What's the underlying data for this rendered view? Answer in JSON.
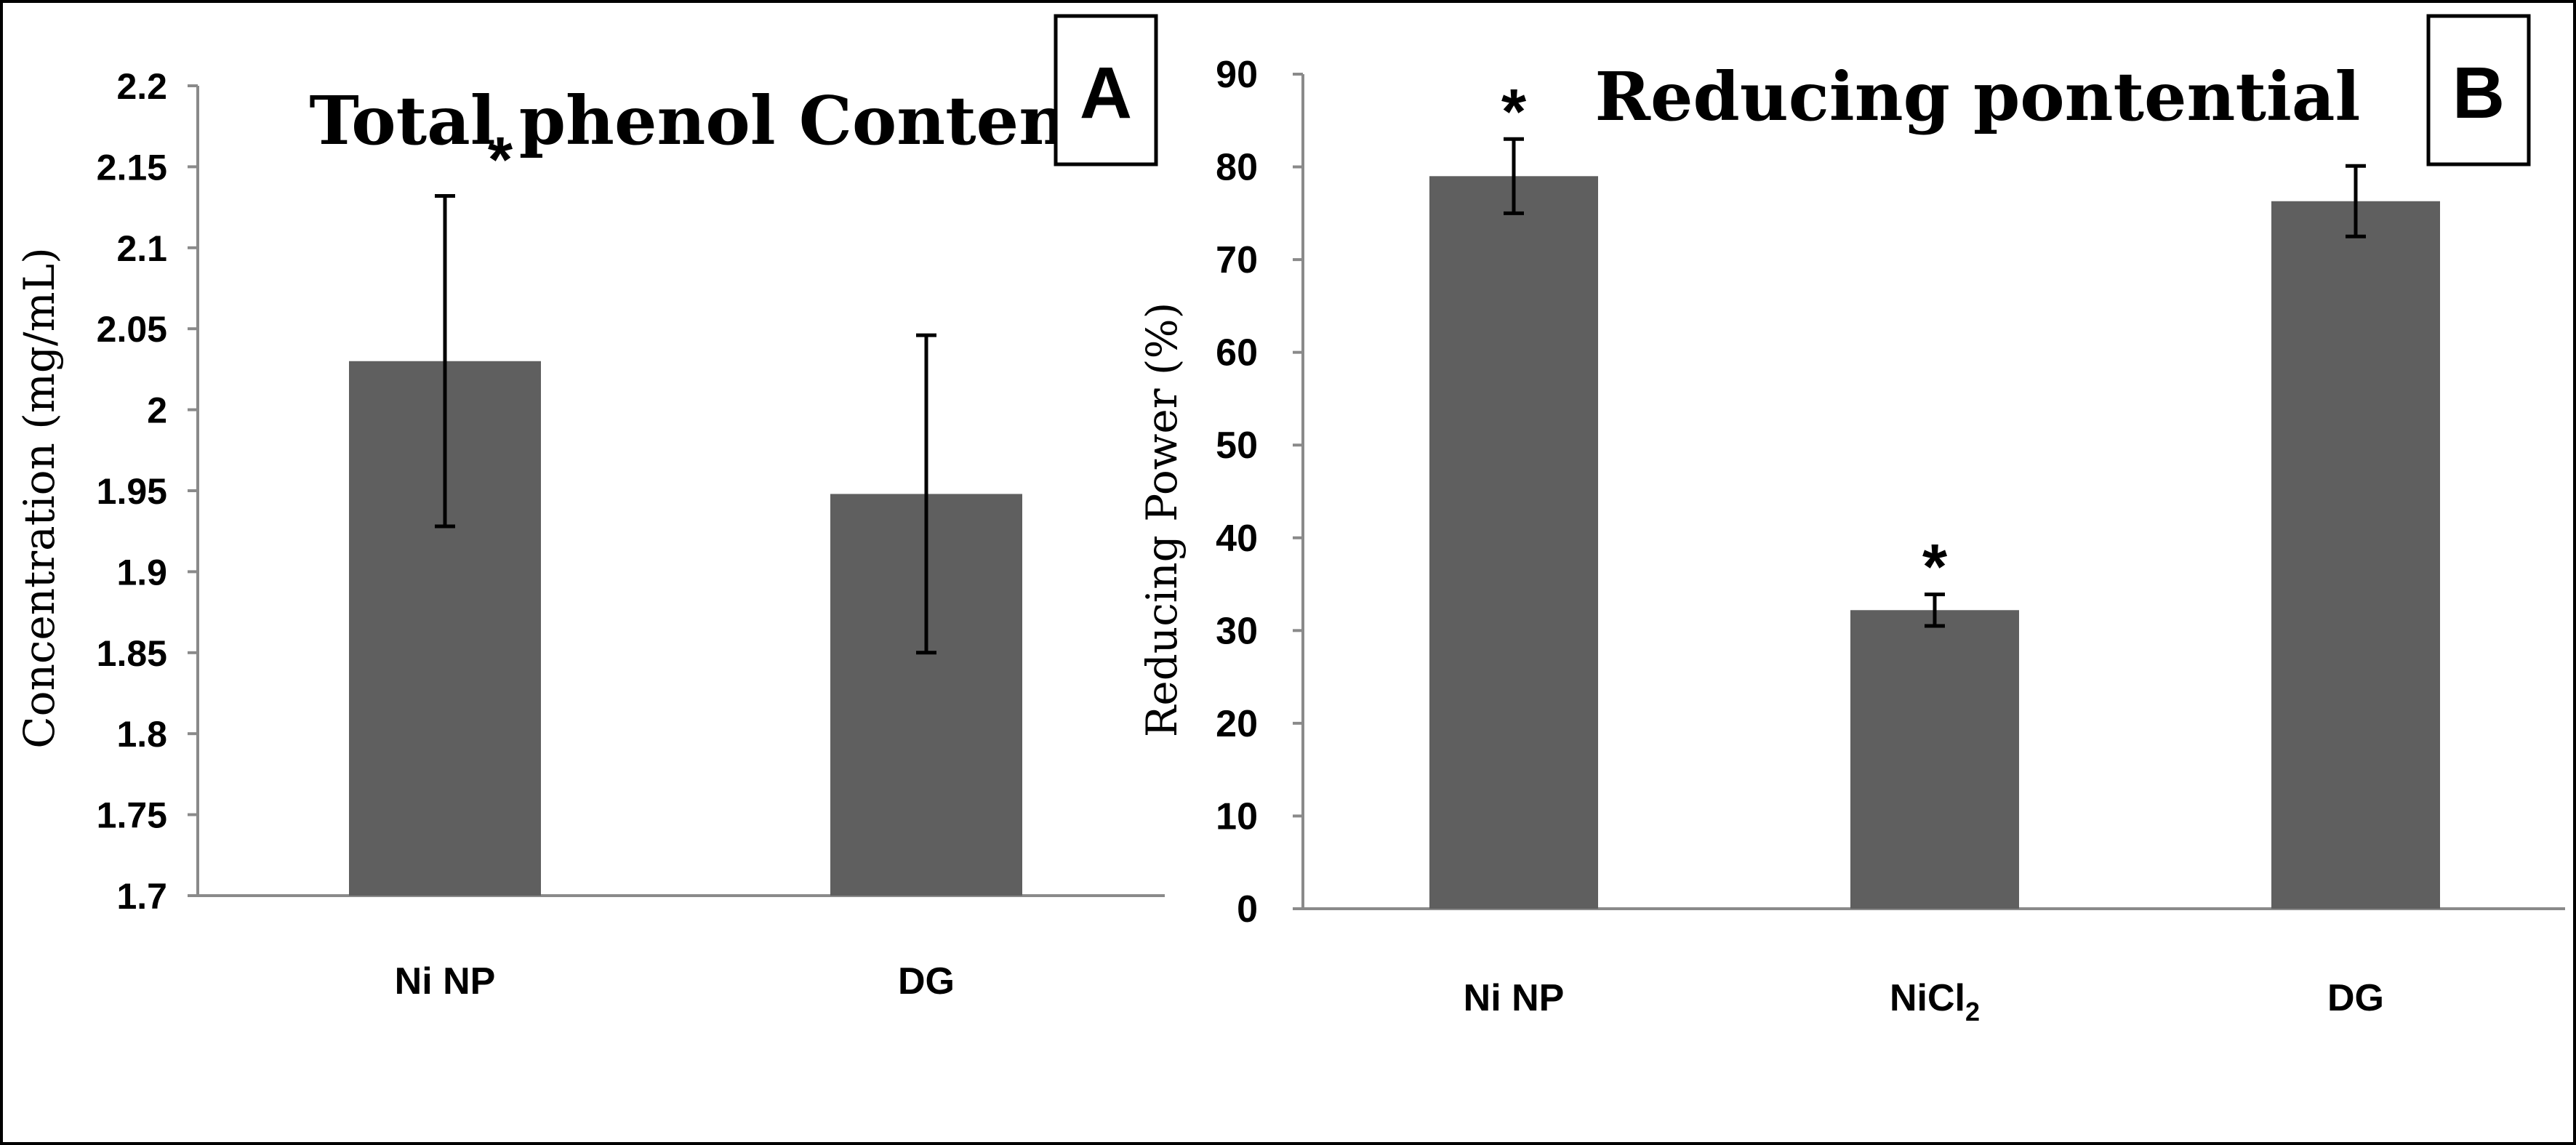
{
  "chart_data": [
    {
      "type": "bar",
      "panel_label": "A",
      "title": "Total phenol Content",
      "ylabel": "Concentration (mg/mL)",
      "xlabel": "",
      "ylim": [
        1.7,
        2.2
      ],
      "ytick_step": 0.05,
      "yticks": [
        "1.7",
        "1.75",
        "1.8",
        "1.85",
        "1.9",
        "1.95",
        "2",
        "2.05",
        "2.1",
        "2.15",
        "2.2"
      ],
      "categories": [
        "Ni NP",
        "DG"
      ],
      "values": [
        2.03,
        1.948
      ],
      "error_bars": [
        0.102,
        0.098
      ],
      "significance": [
        "*",
        ""
      ],
      "grid": false,
      "legend": "none",
      "bar_color": "#5f5f5f"
    },
    {
      "type": "bar",
      "panel_label": "B",
      "title": "Reducing pontential",
      "ylabel": "Reducing Power (%)",
      "xlabel": "",
      "ylim": [
        0,
        90
      ],
      "ytick_step": 10,
      "yticks": [
        "0",
        "10",
        "20",
        "30",
        "40",
        "50",
        "60",
        "70",
        "80",
        "90"
      ],
      "categories": [
        "Ni NP",
        "NiCl",
        "DG"
      ],
      "category_subscripts": [
        "",
        "2",
        ""
      ],
      "values": [
        79,
        32.2,
        76.3
      ],
      "error_bars": [
        4,
        1.7,
        3.8
      ],
      "significance": [
        "*",
        "*",
        ""
      ],
      "grid": false,
      "legend": "none",
      "bar_color": "#5f5f5f"
    }
  ]
}
